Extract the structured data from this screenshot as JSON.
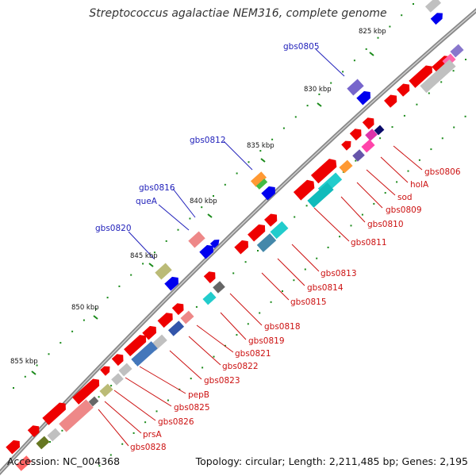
{
  "title": "Streptococcus agalactiae NEM316, complete genome",
  "footer": {
    "accession": "Accession: NC_004368",
    "summary": "Topology: circular; Length: 2,211,485 bp; Genes: 2,195"
  },
  "colors": {
    "backbone": "#888888",
    "forward_label": "#2222bb",
    "reverse_label": "#cc1111",
    "tick": "#1a8a1a",
    "cds": "#ee0000",
    "gene": "#0000ee"
  },
  "scale_labels": [
    "825 kbp",
    "830 kbp",
    "835 kbp",
    "840 kbp",
    "845 kbp",
    "850 kbp",
    "855 kbp"
  ],
  "forward_labels": [
    "gbs0805",
    "gbs0812",
    "gbs0816",
    "queA",
    "gbs0820"
  ],
  "reverse_labels": [
    "gbs0806",
    "holA",
    "sod",
    "gbs0809",
    "gbs0810",
    "gbs0811",
    "gbs0813",
    "gbs0814",
    "gbs0815",
    "gbs0818",
    "gbs0819",
    "gbs0821",
    "gbs0822",
    "gbs0823",
    "pepB",
    "gbs0825",
    "gbs0826",
    "prsA",
    "gbs0828"
  ]
}
